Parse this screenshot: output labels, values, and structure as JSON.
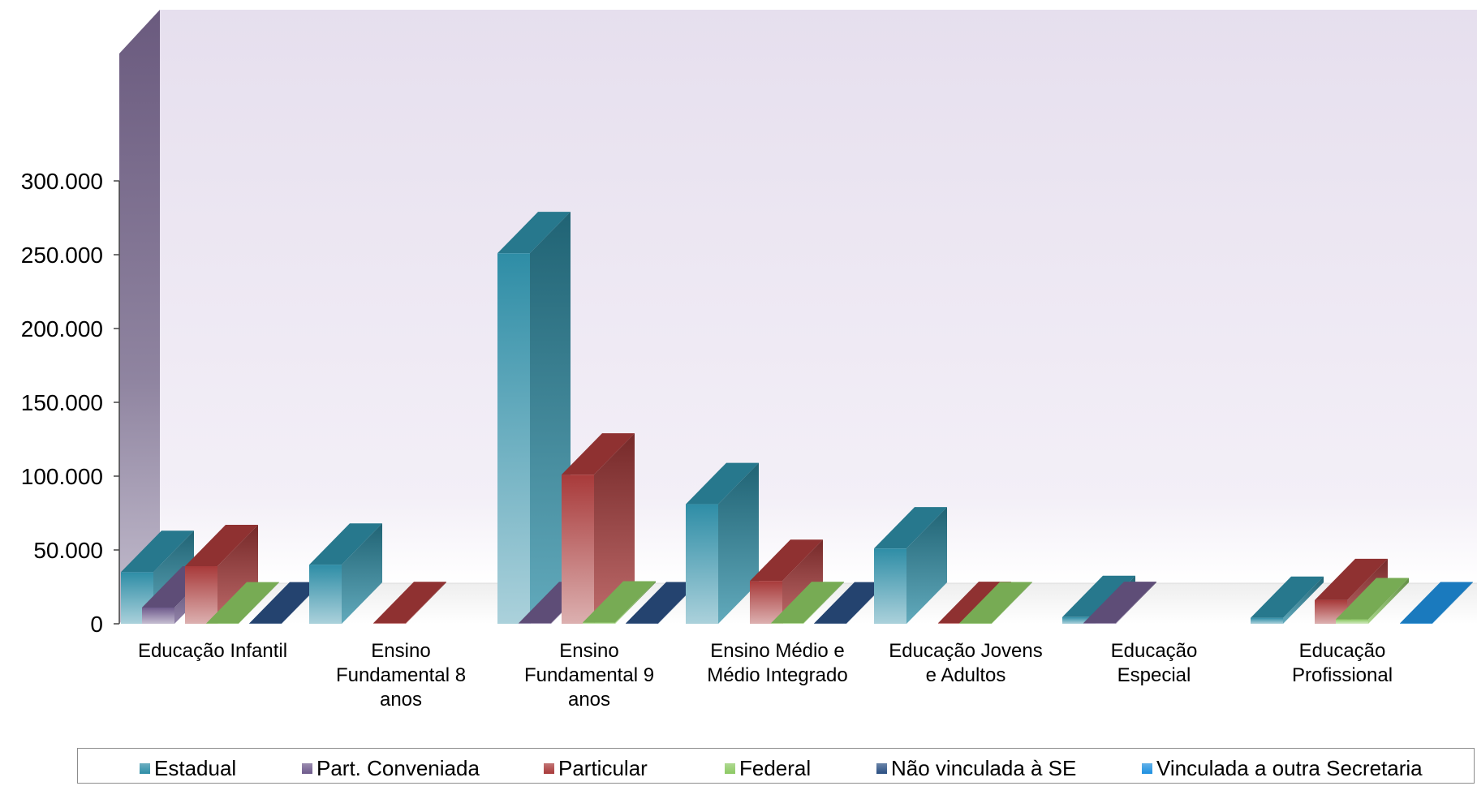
{
  "chart_data": {
    "type": "bar",
    "title": "",
    "xlabel": "",
    "ylabel": "",
    "ylim": [
      0,
      300000
    ],
    "yticks": [
      0,
      50000,
      100000,
      150000,
      200000,
      250000,
      300000
    ],
    "ytick_labels": [
      "0",
      "50.000",
      "100.000",
      "150.000",
      "200.000",
      "250.000",
      "300.000"
    ],
    "categories": [
      "Educação Infantil",
      "Ensino Fundamental  8 anos",
      "Ensino Fundamental 9 anos",
      "Ensino Médio e Médio Integrado",
      "Educação Jovens e Adultos",
      "Educação Especial",
      "Educação Profissional"
    ],
    "category_label_lines": [
      [
        "Educação Infantil"
      ],
      [
        "Ensino",
        "Fundamental  8",
        "anos"
      ],
      [
        "Ensino",
        "Fundamental 9",
        "anos"
      ],
      [
        "Ensino Médio e",
        "Médio Integrado"
      ],
      [
        "Educação Jovens",
        "e Adultos"
      ],
      [
        "Educação",
        "Especial"
      ],
      [
        "Educação",
        "Profissional"
      ]
    ],
    "series": [
      {
        "name": "Estadual",
        "color": "#2e8da6",
        "values": [
          35000,
          40000,
          251000,
          81000,
          51000,
          4500,
          4000
        ]
      },
      {
        "name": "Part. Conveniada",
        "color": "#6e5a8c",
        "values": [
          11000,
          0,
          400,
          0,
          0,
          500,
          0
        ]
      },
      {
        "name": "Particular",
        "color": "#a83a3a",
        "values": [
          39000,
          400,
          101000,
          29000,
          500,
          0,
          16000
        ]
      },
      {
        "name": "Federal",
        "color": "#8cc963",
        "values": [
          200,
          0,
          800,
          400,
          300,
          0,
          3000
        ]
      },
      {
        "name": "Não vinculada à SE",
        "color": "#2a4f82",
        "values": [
          200,
          0,
          300,
          200,
          0,
          0,
          0
        ]
      },
      {
        "name": "Vinculada a outra Secretaria",
        "color": "#1e90e0",
        "values": [
          0,
          0,
          0,
          0,
          0,
          0,
          300
        ]
      }
    ],
    "grid": false,
    "legend_position": "bottom"
  }
}
